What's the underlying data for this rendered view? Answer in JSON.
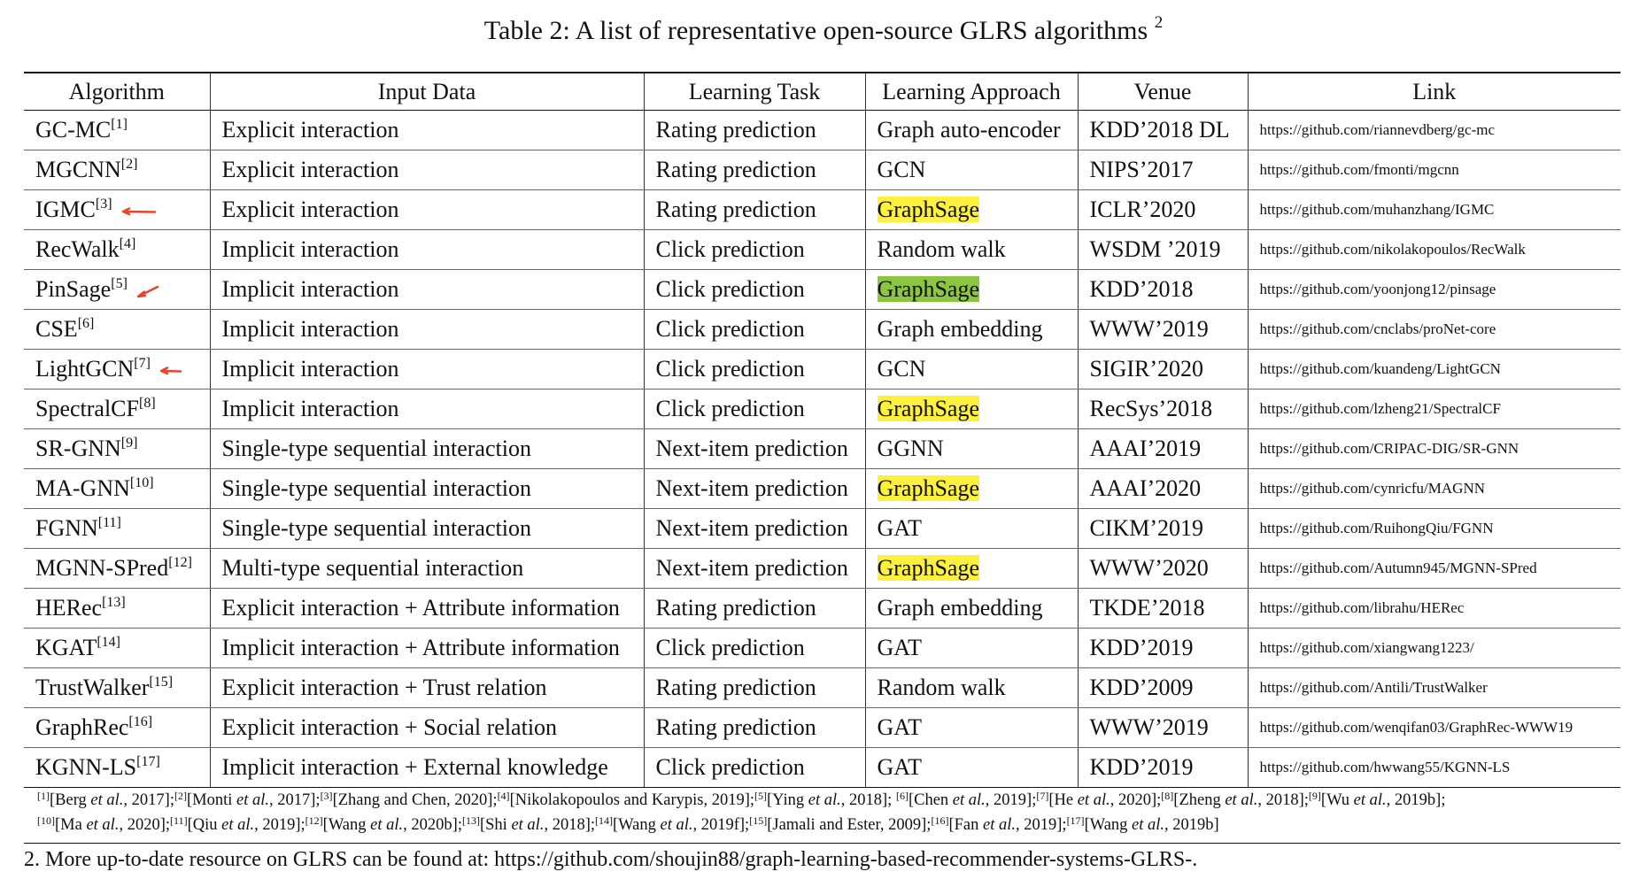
{
  "caption": {
    "text": "Table 2: A list of representative open-source GLRS algorithms ",
    "sup": "2"
  },
  "table": {
    "headers": [
      "Algorithm",
      "Input Data",
      "Learning Task",
      "Learning Approach",
      "Venue",
      "Link"
    ],
    "rows": [
      {
        "alg": "GC-MC",
        "ref": "[1]",
        "input": "Explicit interaction",
        "task": "Rating prediction",
        "approach": "Graph auto-encoder",
        "hl": "",
        "arrow": "",
        "venue": "KDD’2018 DL",
        "link": "https://github.com/riannevdberg/gc-mc"
      },
      {
        "alg": "MGCNN",
        "ref": "[2]",
        "input": "Explicit interaction",
        "task": "Rating prediction",
        "approach": "GCN",
        "hl": "",
        "arrow": "",
        "venue": "NIPS’2017",
        "link": "https://github.com/fmonti/mgcnn"
      },
      {
        "alg": "IGMC",
        "ref": "[3]",
        "input": "Explicit interaction",
        "task": "Rating prediction",
        "approach": "GraphSage",
        "hl": "yellow",
        "arrow": "straight",
        "venue": "ICLR’2020",
        "link": "https://github.com/muhanzhang/IGMC"
      },
      {
        "alg": "RecWalk",
        "ref": "[4]",
        "input": "Implicit interaction",
        "task": "Click prediction",
        "approach": "Random walk",
        "hl": "",
        "arrow": "",
        "venue": "WSDM ’2019",
        "link": "https://github.com/nikolakopoulos/RecWalk"
      },
      {
        "alg": "PinSage",
        "ref": "[5]",
        "input": "Implicit interaction",
        "task": "Click prediction",
        "approach": "GraphSage",
        "hl": "green",
        "arrow": "diagonal",
        "venue": "KDD’2018",
        "link": "https://github.com/yoonjong12/pinsage"
      },
      {
        "alg": "CSE",
        "ref": "[6]",
        "input": "Implicit interaction",
        "task": "Click prediction",
        "approach": "Graph embedding",
        "hl": "",
        "arrow": "",
        "venue": "WWW’2019",
        "link": "https://github.com/cnclabs/proNet-core"
      },
      {
        "alg": "LightGCN",
        "ref": "[7]",
        "input": "Implicit interaction",
        "task": "Click prediction",
        "approach": "GCN",
        "hl": "",
        "arrow": "short",
        "venue": "SIGIR’2020",
        "link": "https://github.com/kuandeng/LightGCN"
      },
      {
        "alg": "SpectralCF",
        "ref": "[8]",
        "input": "Implicit interaction",
        "task": "Click prediction",
        "approach": "GraphSage",
        "hl": "yellow",
        "arrow": "",
        "venue": "RecSys’2018",
        "link": "https://github.com/lzheng21/SpectralCF"
      },
      {
        "alg": "SR-GNN",
        "ref": "[9]",
        "input": "Single-type sequential interaction",
        "task": "Next-item prediction",
        "approach": "GGNN",
        "hl": "",
        "arrow": "",
        "venue": "AAAI’2019",
        "link": "https://github.com/CRIPAC-DIG/SR-GNN"
      },
      {
        "alg": "MA-GNN",
        "ref": "[10]",
        "input": "Single-type sequential interaction",
        "task": "Next-item prediction",
        "approach": "GraphSage",
        "hl": "yellow",
        "arrow": "",
        "venue": "AAAI’2020",
        "link": "https://github.com/cynricfu/MAGNN"
      },
      {
        "alg": "FGNN",
        "ref": "[11]",
        "input": "Single-type sequential interaction",
        "task": "Next-item prediction",
        "approach": "GAT",
        "hl": "",
        "arrow": "",
        "venue": "CIKM’2019",
        "link": "https://github.com/RuihongQiu/FGNN"
      },
      {
        "alg": "MGNN-SPred",
        "ref": "[12]",
        "input": "Multi-type sequential interaction",
        "task": "Next-item prediction",
        "approach": "GraphSage",
        "hl": "yellow",
        "arrow": "",
        "venue": "WWW’2020",
        "link": "https://github.com/Autumn945/MGNN-SPred"
      },
      {
        "alg": "HERec",
        "ref": "[13]",
        "input": "Explicit interaction + Attribute information",
        "task": "Rating prediction",
        "approach": "Graph embedding",
        "hl": "",
        "arrow": "",
        "venue": "TKDE’2018",
        "link": "https://github.com/librahu/HERec"
      },
      {
        "alg": "KGAT",
        "ref": "[14]",
        "input": "Implicit interaction + Attribute information",
        "task": "Click prediction",
        "approach": "GAT",
        "hl": "",
        "arrow": "",
        "venue": "KDD’2019",
        "link": "https://github.com/xiangwang1223/"
      },
      {
        "alg": "TrustWalker",
        "ref": "[15]",
        "input": "Explicit interaction + Trust relation",
        "task": "Rating prediction",
        "approach": "Random walk",
        "hl": "",
        "arrow": "",
        "venue": "KDD’2009",
        "link": "https://github.com/Antili/TrustWalker"
      },
      {
        "alg": "GraphRec",
        "ref": "[16]",
        "input": "Explicit interaction + Social relation",
        "task": "Rating prediction",
        "approach": "GAT",
        "hl": "",
        "arrow": "",
        "venue": "WWW’2019",
        "link": "https://github.com/wenqifan03/GraphRec-WWW19"
      },
      {
        "alg": "KGNN-LS",
        "ref": "[17]",
        "input": "Implicit interaction + External knowledge",
        "task": "Click prediction",
        "approach": "GAT",
        "hl": "",
        "arrow": "",
        "venue": "KDD’2019",
        "link": "https://github.com/hwwang55/KGNN-LS"
      }
    ]
  },
  "references": [
    [
      {
        "sup": "[1]",
        "pre": "[Berg ",
        "em": "et al.",
        "post": ", 2017];"
      },
      {
        "sup": "[2]",
        "pre": "[Monti ",
        "em": "et al.",
        "post": ", 2017];"
      },
      {
        "sup": "[3]",
        "pre": "[Zhang and Chen, 2020];",
        "em": "",
        "post": ""
      },
      {
        "sup": "[4]",
        "pre": "[Nikolakopoulos and Karypis, 2019];",
        "em": "",
        "post": ""
      },
      {
        "sup": "[5]",
        "pre": "[Ying ",
        "em": "et al.",
        "post": ", 2018]; "
      },
      {
        "sup": "[6]",
        "pre": "[Chen ",
        "em": "et al.",
        "post": ", 2019];"
      },
      {
        "sup": "[7]",
        "pre": "[He ",
        "em": "et al.",
        "post": ", 2020];"
      },
      {
        "sup": "[8]",
        "pre": "[Zheng ",
        "em": "et al.",
        "post": ", 2018];"
      },
      {
        "sup": "[9]",
        "pre": "[Wu ",
        "em": "et al.",
        "post": ", 2019b];"
      }
    ],
    [
      {
        "sup": "[10]",
        "pre": "[Ma ",
        "em": "et al.",
        "post": ", 2020];"
      },
      {
        "sup": "[11]",
        "pre": "[Qiu ",
        "em": "et al.",
        "post": ", 2019];"
      },
      {
        "sup": "[12]",
        "pre": "[Wang ",
        "em": "et al.",
        "post": ", 2020b];"
      },
      {
        "sup": "[13]",
        "pre": "[Shi ",
        "em": "et al.",
        "post": ", 2018];"
      },
      {
        "sup": "[14]",
        "pre": "[Wang ",
        "em": "et al.",
        "post": ", 2019f];"
      },
      {
        "sup": "[15]",
        "pre": "[Jamali and Ester, 2009];",
        "em": "",
        "post": ""
      },
      {
        "sup": "[16]",
        "pre": "[Fan ",
        "em": "et al.",
        "post": ", 2019];"
      },
      {
        "sup": "[17]",
        "pre": "[Wang ",
        "em": "et al.",
        "post": ", 2019b]"
      }
    ]
  ],
  "footnote": "2. More up-to-date resource on GLRS can be found at: https://github.com/shoujin88/graph-learning-based-recommender-systems-GLRS-.",
  "colors": {
    "highlight_yellow": "#fef13d",
    "highlight_green": "#8cc541",
    "arrow_red": "#e8442c"
  }
}
